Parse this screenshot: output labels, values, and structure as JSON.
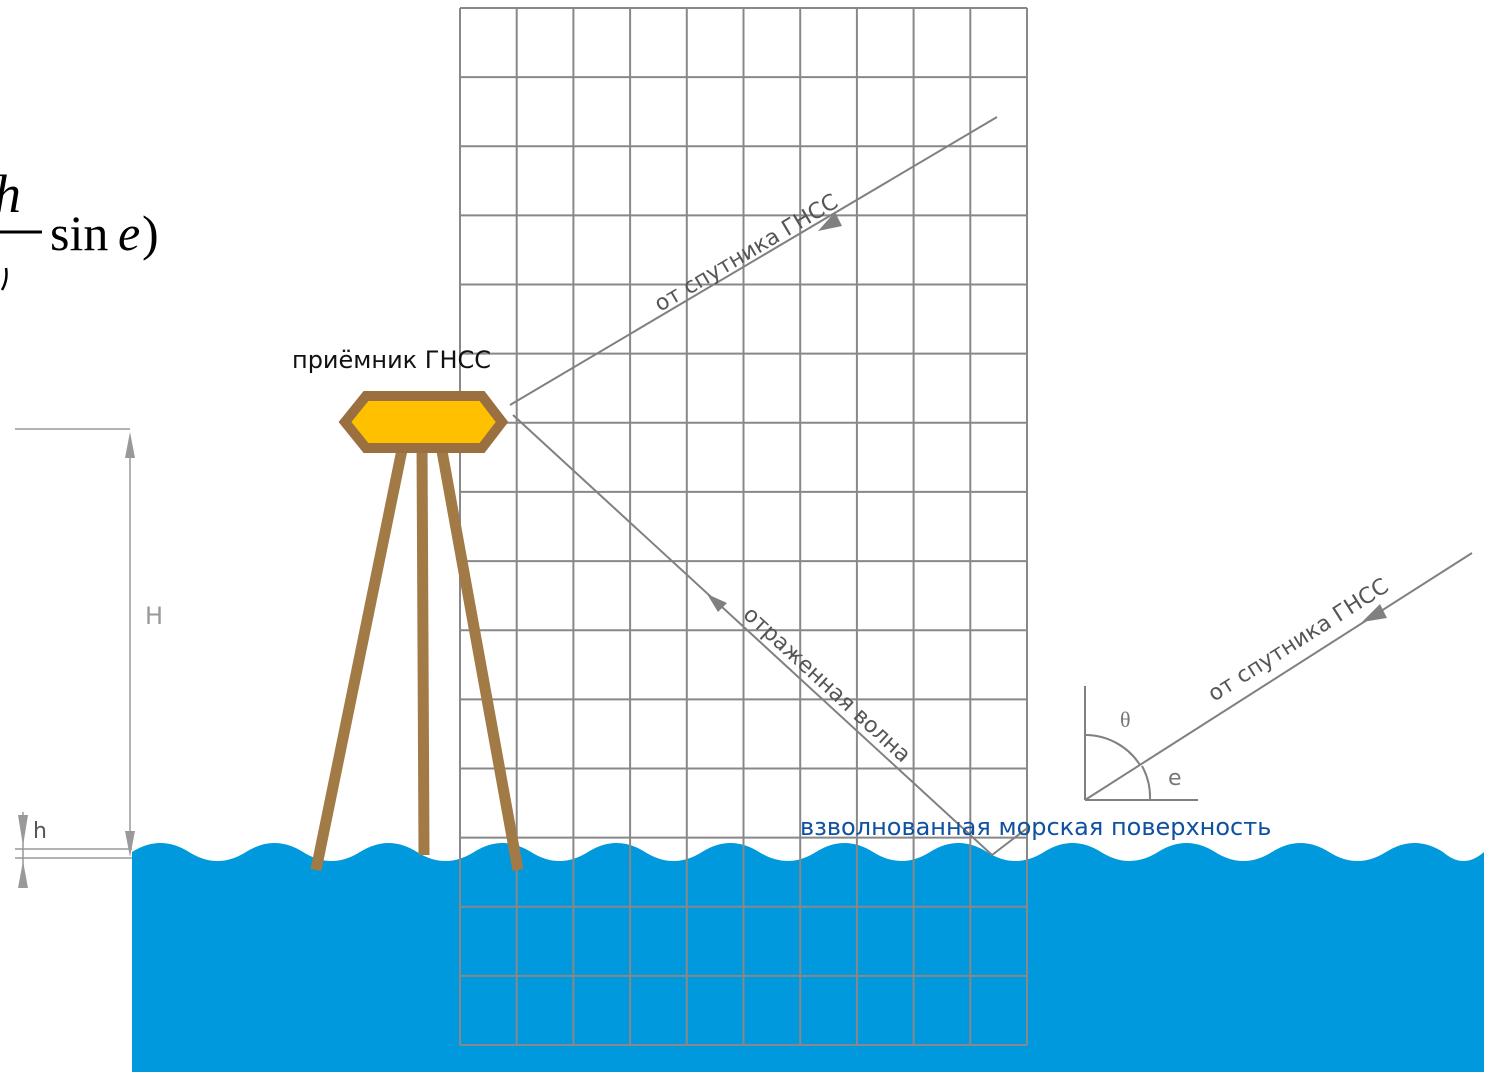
{
  "formula": {
    "fragment_top": "h",
    "fragment_sin": "sin",
    "fragment_e": "e",
    "fragment_paren": ")"
  },
  "labels": {
    "receiver": "приёмник ГНСС",
    "from_satellite_upper": "от спутника ГНСС",
    "from_satellite_lower": "от спутника ГНСС",
    "reflected_wave": "отраженная волна",
    "sea_surface": "взволнованная морская поверхность",
    "H": "H",
    "h": "h",
    "theta": "θ",
    "e": "e"
  },
  "colors": {
    "water": "#0099dd",
    "grid": "#888888",
    "tripod": "#a27a46",
    "receiver_fill": "#ffc000",
    "receiver_stroke": "#9a7040",
    "ray": "#808080",
    "sea_label": "#1050a0",
    "dimension": "#999999"
  }
}
